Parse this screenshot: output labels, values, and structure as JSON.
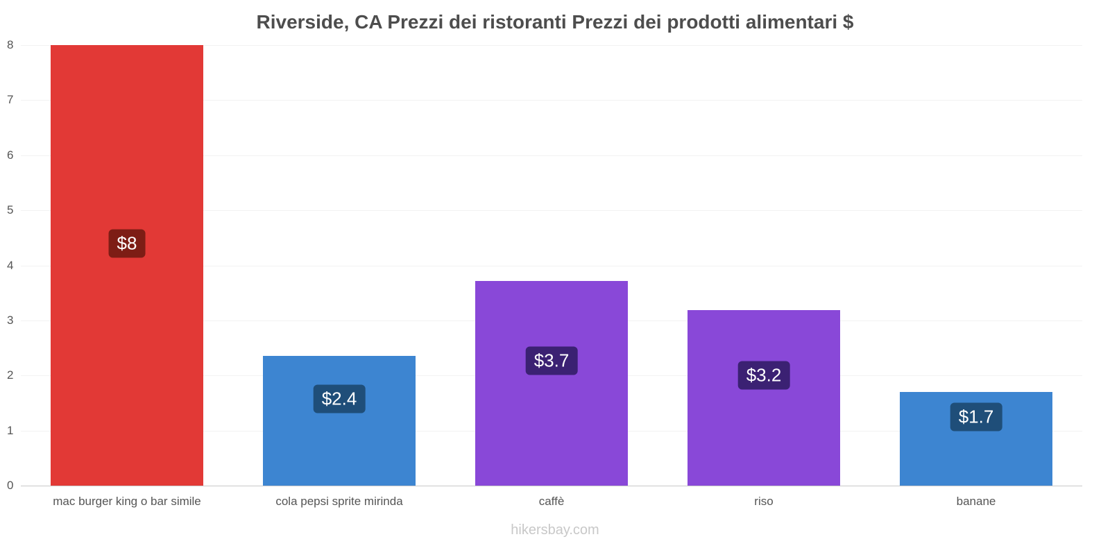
{
  "title": "Riverside, CA Prezzi dei ristoranti Prezzi dei prodotti alimentari $",
  "footer": "hikersbay.com",
  "chart_data": {
    "type": "bar",
    "title": "Riverside, CA Prezzi dei ristoranti Prezzi dei prodotti alimentari $",
    "categories": [
      "mac burger king o bar simile",
      "cola pepsi sprite mirinda",
      "caffè",
      "riso",
      "banane"
    ],
    "values": [
      8,
      2.35,
      3.72,
      3.19,
      1.7
    ],
    "value_labels": [
      "$8",
      "$2.4",
      "$3.7",
      "$3.2",
      "$1.7"
    ],
    "bar_colors": [
      "#e23936",
      "#3d85d1",
      "#8948d8",
      "#8948d8",
      "#3d85d1"
    ],
    "label_bg_colors": [
      "#7d1d15",
      "#1f4e79",
      "#3b2173",
      "#3b2173",
      "#1f4e79"
    ],
    "xlabel": "",
    "ylabel": "",
    "ylim": [
      0,
      8
    ],
    "yticks": [
      0,
      1,
      2,
      3,
      4,
      5,
      6,
      7,
      8
    ],
    "grid": true,
    "legend": "none",
    "currency": "$"
  }
}
